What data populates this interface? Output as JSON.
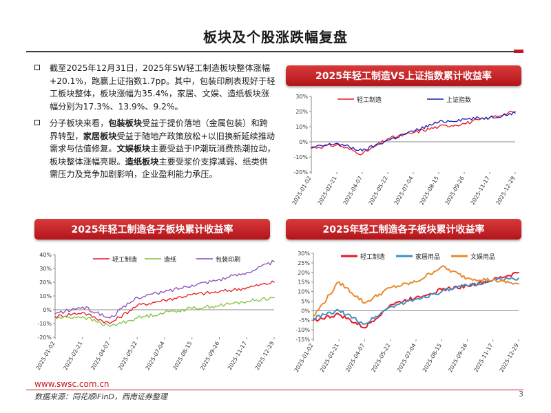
{
  "page": {
    "title": "板块及个股涨跌幅复盘",
    "website": "www.swsc.com.cn",
    "source": "数据来源：同花顺iFinD，西南证券整理",
    "page_number": "3"
  },
  "bullets": [
    {
      "parts": [
        {
          "text": "截至2025年12月31日，2025年SW轻工制造板块整体涨幅+20.1%，跑赢上证指数1.7pp。其中，包装印刷表现好于轻工板块整体，板块涨幅为35.4%，家居、文娱、造纸板块涨幅分别为17.3%、13.9%、9.2%。",
          "bold": false
        }
      ]
    },
    {
      "parts": [
        {
          "text": "分子板块来看，",
          "bold": false
        },
        {
          "text": "包装板块",
          "bold": true
        },
        {
          "text": "受益于提价落地（金属包装）和跨界转型，",
          "bold": false
        },
        {
          "text": "家居板块",
          "bold": true
        },
        {
          "text": "受益于随地产政策放松+以旧换新延续推动需求与估值修复。",
          "bold": false
        },
        {
          "text": "文娱板块",
          "bold": true
        },
        {
          "text": "主要受益于IP潮玩消费热潮拉动，板块整体涨幅亮眼。",
          "bold": false
        },
        {
          "text": "造纸板块",
          "bold": true
        },
        {
          "text": "主要受浆价支撑减弱、纸类供需压力及竞争加剧影响，企业盈利能力承压。",
          "bold": false
        }
      ]
    }
  ],
  "panels": {
    "top_right": "2025年轻工制造VS上证指数累计收益率",
    "bottom_left": "2025年轻工制造各子板块累计收益率",
    "bottom_right": "2025年轻工制造各子板块累计收益率"
  },
  "chart_data": [
    {
      "type": "line",
      "x": [
        "2025-01-02",
        "2025-02-21",
        "2025-04-07",
        "2025-05-22",
        "2025-07-04",
        "2025-08-15",
        "2025-09-26",
        "2025-11-17",
        "2025-12-29"
      ],
      "ylim": [
        -20,
        30
      ],
      "yticks": [
        -20,
        -10,
        0,
        10,
        20,
        30
      ],
      "grid": false,
      "legend": "top",
      "series": [
        {
          "name": "轻工制造",
          "color": "#e8161e",
          "values": [
            -4,
            -2,
            -8,
            2,
            6,
            10,
            12,
            16,
            20
          ]
        },
        {
          "name": "上证指数",
          "color": "#1a1ab4",
          "values": [
            -4,
            -1,
            -6,
            1,
            7,
            13,
            15,
            16,
            19
          ]
        }
      ]
    },
    {
      "type": "line",
      "x": [
        "2025-01-02",
        "2025-02-21",
        "2025-04-07",
        "2025-05-22",
        "2025-07-04",
        "2025-08-15",
        "2025-09-26",
        "2025-11-17",
        "2025-12-29"
      ],
      "ylim": [
        -20,
        40
      ],
      "yticks": [
        -20,
        -10,
        0,
        10,
        20,
        30,
        40
      ],
      "grid": false,
      "legend": "top",
      "series": [
        {
          "name": "轻工制造",
          "color": "#e8161e",
          "values": [
            -5,
            -2,
            -10,
            3,
            7,
            11,
            13,
            16,
            20
          ]
        },
        {
          "name": "造纸",
          "color": "#7cc43a",
          "values": [
            -6,
            -5,
            -12,
            -6,
            -2,
            1,
            3,
            6,
            9
          ]
        },
        {
          "name": "包装印刷",
          "color": "#8a4bb8",
          "values": [
            -3,
            2,
            -6,
            9,
            13,
            18,
            22,
            27,
            35
          ]
        }
      ]
    },
    {
      "type": "line",
      "x": [
        "2025-01-02",
        "2025-02-21",
        "2025-04-07",
        "2025-05-22",
        "2025-07-04",
        "2025-08-15",
        "2025-09-26",
        "2025-11-17",
        "2025-12-29"
      ],
      "ylim": [
        -15,
        30
      ],
      "yticks": [
        -15,
        -10,
        -5,
        0,
        5,
        10,
        15,
        20,
        25,
        30
      ],
      "grid": false,
      "legend": "top",
      "series": [
        {
          "name": "轻工制造",
          "color": "#e8161e",
          "values": [
            -5,
            -2,
            -9,
            3,
            7,
            11,
            13,
            16,
            20
          ]
        },
        {
          "name": "家居用品",
          "color": "#3f8fc4",
          "values": [
            -4,
            0,
            -7,
            2,
            6,
            10,
            13,
            16,
            17
          ]
        },
        {
          "name": "文娱用品",
          "color": "#e98a2c",
          "values": [
            -3,
            15,
            4,
            12,
            15,
            23,
            17,
            16,
            14
          ]
        }
      ]
    }
  ]
}
